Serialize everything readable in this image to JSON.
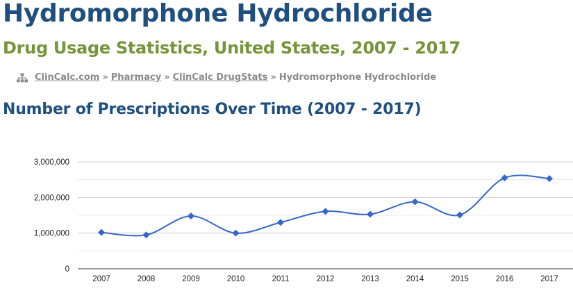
{
  "page": {
    "title": "Hydromorphone Hydrochloride",
    "subtitle": "Drug Usage Statistics, United States, 2007 - 2017"
  },
  "breadcrumb": {
    "icon": "sitemap-icon",
    "items": [
      "ClinCalc.com",
      "Pharmacy",
      "ClinCalc DrugStats"
    ],
    "separator": "»",
    "current": "Hydromorphone Hydrochloride"
  },
  "section": {
    "heading": "Number of Prescriptions Over Time (2007 - 2017)"
  },
  "colors": {
    "title": "#1f4f7f",
    "subtitle": "#76953a",
    "breadcrumb": "#8a8a8a",
    "series": "#3366cc"
  },
  "chart_data": {
    "type": "line",
    "title": "",
    "xlabel": "",
    "ylabel": "",
    "categories": [
      "2007",
      "2008",
      "2009",
      "2010",
      "2011",
      "2012",
      "2013",
      "2014",
      "2015",
      "2016",
      "2017"
    ],
    "series": [
      {
        "values": [
          1020000,
          950000,
          1480000,
          1000000,
          1300000,
          1610000,
          1530000,
          1880000,
          1510000,
          2550000,
          2530000
        ],
        "marker": "diamond",
        "smooth": true
      }
    ],
    "ylim": [
      0,
      3000000
    ],
    "yticks": [
      0,
      1000000,
      2000000,
      3000000
    ],
    "ytick_labels": [
      "0",
      "1,000,000",
      "2,000,000",
      "3,000,000"
    ],
    "grid": true,
    "legend": "none"
  }
}
